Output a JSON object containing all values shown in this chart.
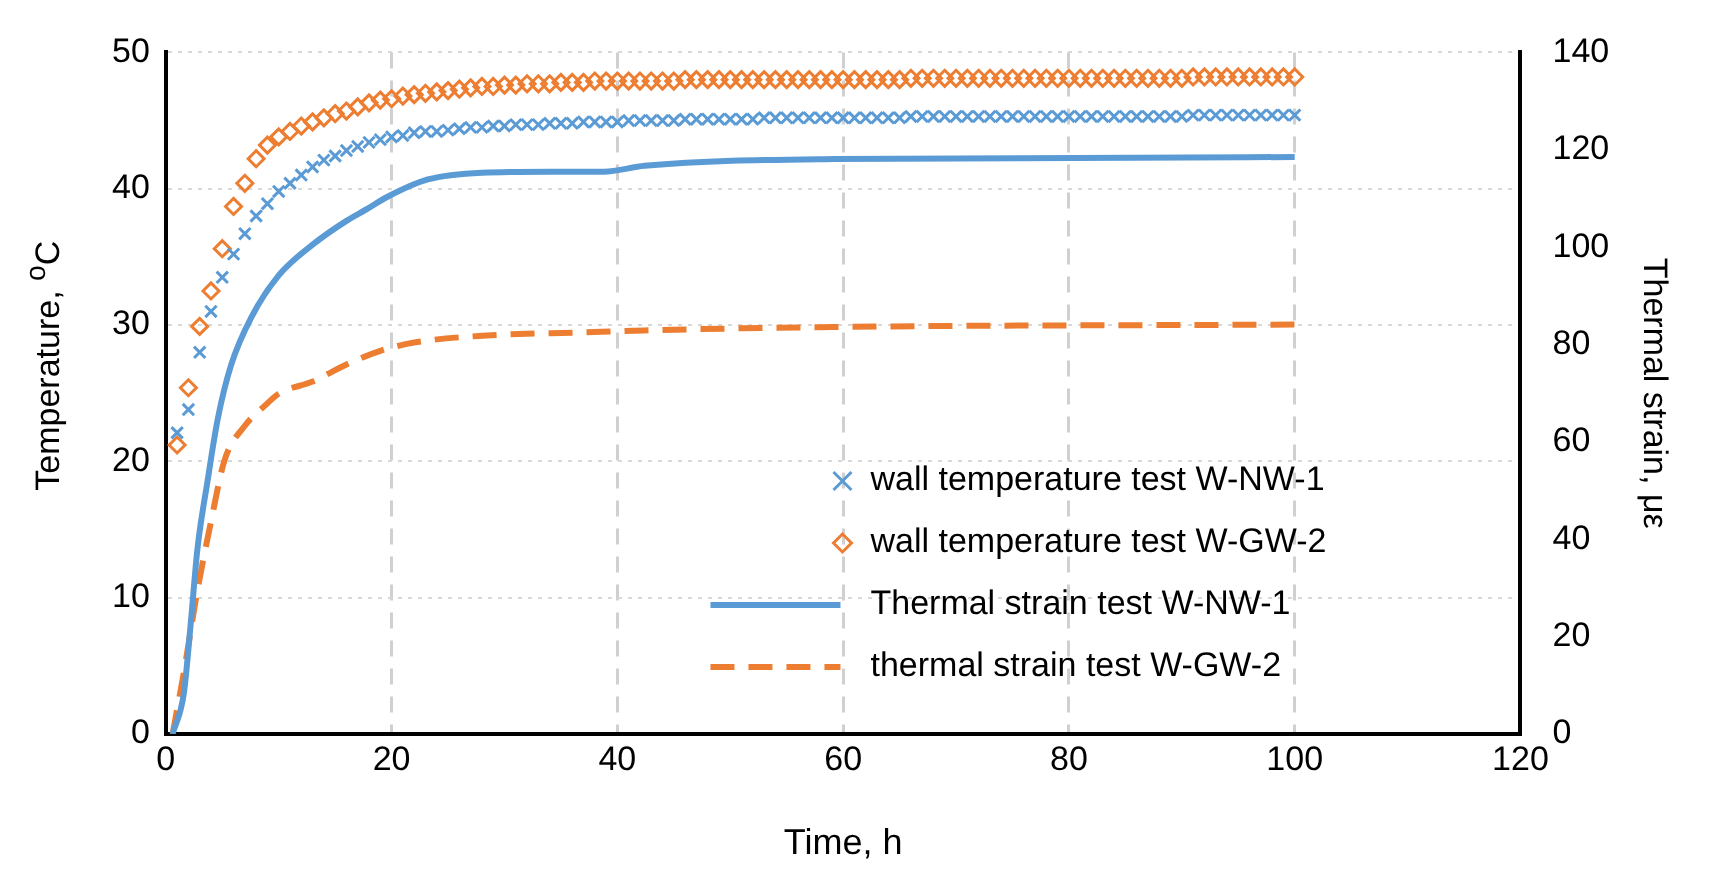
{
  "chart_data": {
    "type": "scatter",
    "xlabel": "Time, h",
    "ylabel": "Temperature, $^{o}$C",
    "y2label": "Thermal strain, με",
    "x": [
      1,
      2,
      3,
      4,
      5,
      6,
      7,
      8,
      9,
      10,
      11,
      12,
      13,
      14,
      15,
      16,
      17,
      18,
      19,
      20,
      21,
      22,
      23,
      24,
      25,
      26,
      27,
      28,
      29,
      30,
      31,
      32,
      33,
      34,
      35,
      36,
      37,
      38,
      39,
      40,
      41,
      42,
      43,
      44,
      45,
      46,
      47,
      48,
      49,
      50,
      51,
      52,
      53,
      54,
      55,
      56,
      57,
      58,
      59,
      60,
      61,
      62,
      63,
      64,
      65,
      66,
      67,
      68,
      69,
      70,
      71,
      72,
      73,
      74,
      75,
      76,
      77,
      78,
      79,
      80,
      81,
      82,
      83,
      84,
      85,
      86,
      87,
      88,
      89,
      90,
      91,
      92,
      93,
      94,
      95,
      96,
      97,
      98,
      99,
      100
    ],
    "series": [
      {
        "name": "wall temperature test W-NW-1",
        "type": "scatter",
        "marker": "cross",
        "color": "#5b9bd5",
        "values": [
          22.1,
          23.8,
          28,
          31,
          33.5,
          35.2,
          36.7,
          38,
          38.9,
          39.8,
          40.4,
          41,
          41.6,
          42.1,
          42.4,
          42.8,
          43.1,
          43.4,
          43.6,
          43.8,
          43.9,
          44.1,
          44.2,
          44.2,
          44.3,
          44.4,
          44.5,
          44.5,
          44.6,
          44.6,
          44.7,
          44.7,
          44.7,
          44.8,
          44.8,
          44.8,
          44.9,
          44.9,
          44.9,
          44.9,
          45,
          45,
          45,
          45,
          45,
          45.1,
          45.1,
          45.1,
          45.1,
          45.1,
          45.1,
          45.1,
          45.2,
          45.2,
          45.2,
          45.2,
          45.2,
          45.2,
          45.2,
          45.2,
          45.2,
          45.2,
          45.2,
          45.2,
          45.2,
          45.3,
          45.3,
          45.3,
          45.3,
          45.3,
          45.3,
          45.3,
          45.3,
          45.3,
          45.3,
          45.3,
          45.3,
          45.3,
          45.3,
          45.3,
          45.3,
          45.3,
          45.3,
          45.3,
          45.3,
          45.3,
          45.3,
          45.3,
          45.3,
          45.3,
          45.4,
          45.4,
          45.4,
          45.4,
          45.4,
          45.4,
          45.4,
          45.4,
          45.4,
          45.4
        ]
      },
      {
        "name": "wall temperature test W-GW-2",
        "type": "scatter",
        "marker": "diamond",
        "color": "#ed7d31",
        "values": [
          21.2,
          25.4,
          29.9,
          32.5,
          35.6,
          38.7,
          40.4,
          42.2,
          43.2,
          43.8,
          44.2,
          44.6,
          44.9,
          45.2,
          45.5,
          45.7,
          46,
          46.3,
          46.5,
          46.6,
          46.8,
          46.9,
          47,
          47.1,
          47.2,
          47.3,
          47.4,
          47.5,
          47.5,
          47.6,
          47.6,
          47.7,
          47.7,
          47.7,
          47.8,
          47.8,
          47.8,
          47.9,
          47.9,
          47.9,
          47.9,
          47.9,
          47.9,
          47.9,
          47.9,
          48,
          48,
          48,
          48,
          48,
          48,
          48,
          48,
          48,
          48,
          48,
          48,
          48,
          48,
          48,
          48,
          48,
          48,
          48,
          48,
          48.1,
          48.1,
          48.1,
          48.1,
          48.1,
          48.1,
          48.1,
          48.1,
          48.1,
          48.1,
          48.1,
          48.1,
          48.1,
          48.1,
          48.1,
          48.1,
          48.1,
          48.1,
          48.1,
          48.1,
          48.1,
          48.1,
          48.1,
          48.1,
          48.1,
          48.2,
          48.2,
          48.2,
          48.2,
          48.2,
          48.2,
          48.2,
          48.2,
          48.2,
          48.2
        ]
      },
      {
        "name": "Thermal strain test W-NW-1",
        "type": "line",
        "axis": "y2",
        "line_style": "solid",
        "color": "#5b9bd5",
        "x": [
          0.6,
          1.6,
          2.2,
          2.8,
          3.7,
          4.6,
          5.8,
          7.6,
          10,
          13,
          16,
          17.8,
          19.6,
          23.2,
          28,
          34,
          38.8,
          42.4,
          59.3,
          100
        ],
        "values": [
          0,
          8.4,
          22.5,
          38,
          52,
          64.7,
          75.9,
          85.7,
          94.2,
          100.5,
          105.4,
          107.8,
          110.3,
          113.9,
          115.3,
          115.5,
          115.5,
          116.7,
          118.1,
          118.5
        ]
      },
      {
        "name": "thermal strain test W-GW-2",
        "type": "line",
        "axis": "y2",
        "line_style": "dashed",
        "color": "#ed7d31",
        "x": [
          0.6,
          1.6,
          2.8,
          4,
          5.2,
          7,
          8.8,
          10,
          13,
          16,
          19,
          22,
          28,
          37,
          42.4,
          59,
          100
        ],
        "values": [
          0,
          12.7,
          29.5,
          43.6,
          56.2,
          63.3,
          67.5,
          69.9,
          72.4,
          75.9,
          78.7,
          80.4,
          81.8,
          82.5,
          82.9,
          83.6,
          84.1
        ]
      }
    ],
    "xlim": [
      0,
      120
    ],
    "xticks": [
      0,
      20,
      40,
      60,
      80,
      100,
      120
    ],
    "ylim": [
      0,
      50
    ],
    "yticks": [
      0,
      10,
      20,
      30,
      40,
      50
    ],
    "y2lim": [
      0,
      140
    ],
    "y2ticks": [
      0,
      20,
      40,
      60,
      80,
      100,
      120,
      140
    ],
    "grid": true,
    "legend": "bottom right"
  }
}
